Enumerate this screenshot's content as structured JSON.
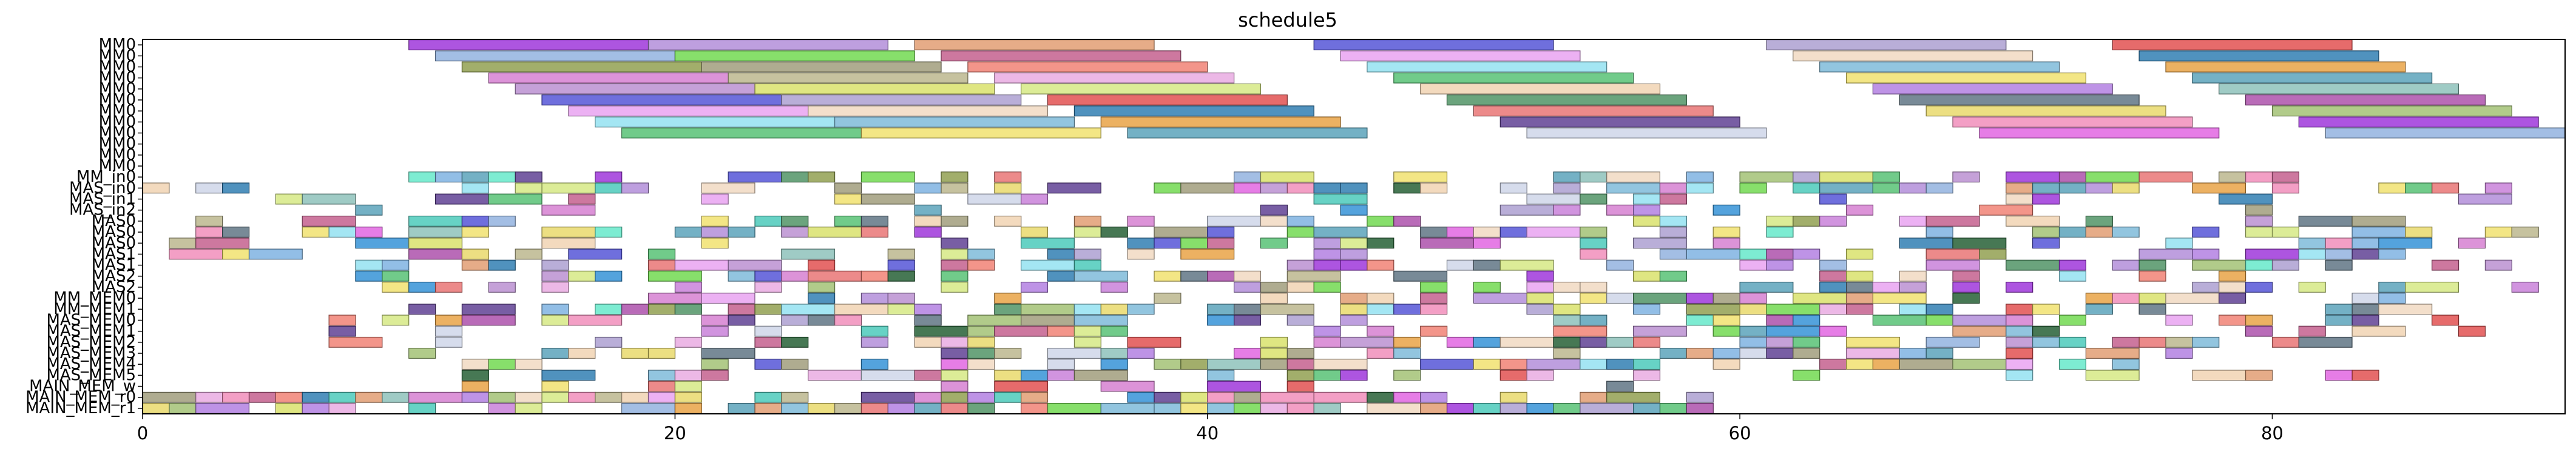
{
  "chart_data": {
    "type": "gantt",
    "title": "schedule5",
    "xlabel": "",
    "ylabel": "",
    "xlim": [
      0,
      91
    ],
    "xticks": [
      0,
      20,
      40,
      60,
      80
    ],
    "grid": false,
    "rows": [
      "MM0",
      "MM0",
      "MM0",
      "MM0",
      "MM0",
      "MM0",
      "MM0",
      "MM0",
      "MM0",
      "MM0",
      "MM0",
      "MM0",
      "MM_in0",
      "MAS_in0",
      "MAS_in1",
      "MAS_in2",
      "MAS0",
      "MAS0",
      "MAS0",
      "MAS1",
      "MAS1",
      "MAS2",
      "MAS2",
      "MM_MEM0",
      "MM_MEM1",
      "MAS_MEM0",
      "MAS_MEM1",
      "MAS_MEM2",
      "MAS_MEM3",
      "MAS_MEM4",
      "MAS_MEM5",
      "MAIN_MEM_w",
      "MAIN_MEM_r0",
      "MAIN_MEM_r1"
    ],
    "palette": [
      "#9b30d9",
      "#c77dd8",
      "#2e8fd6",
      "#8fb0de",
      "#1e5a2e",
      "#b08ad8",
      "#8e9c4a",
      "#7ab0e0",
      "#6dd84a",
      "#d47bd0",
      "#e09a6e",
      "#9d9a78",
      "#b88cd0",
      "#c25a8a",
      "#b9b48a",
      "#4f4fd6",
      "#f07e70",
      "#d8e066",
      "#e8a0f0",
      "#e8a8e0",
      "#aa9cd0",
      "#90e0f0",
      "#d4e880",
      "#f0d8c0",
      "#52c070",
      "#e04a4a",
      "#7ab8d8",
      "#f0d2b0",
      "#2a7ab0",
      "#f0e06a",
      "#4a9060",
      "#e8a040",
      "#b07be0",
      "#e87070",
      "#56a0b8",
      "#5a7080",
      "#5a3a90",
      "#8ac0b8",
      "#e8d866",
      "#cdd4e8",
      "#aa4aa8",
      "#f08ab8",
      "#46c8b8",
      "#a0c070",
      "#e060e0",
      "#60e8c8"
    ],
    "row_bars": [
      [
        [
          10,
          19
        ],
        [
          19,
          28
        ],
        [
          29,
          38
        ],
        [
          44,
          53
        ],
        [
          61,
          70
        ],
        [
          74,
          83
        ]
      ],
      [
        [
          11,
          20
        ],
        [
          20,
          29
        ],
        [
          30,
          39
        ],
        [
          45,
          54
        ],
        [
          62,
          71
        ],
        [
          75,
          84
        ]
      ],
      [
        [
          12,
          21
        ],
        [
          21,
          30
        ],
        [
          31,
          40
        ],
        [
          46,
          55
        ],
        [
          63,
          72
        ],
        [
          76,
          85
        ]
      ],
      [
        [
          13,
          22
        ],
        [
          22,
          31
        ],
        [
          32,
          41
        ],
        [
          47,
          56
        ],
        [
          64,
          73
        ],
        [
          77,
          86
        ]
      ],
      [
        [
          14,
          23
        ],
        [
          23,
          32
        ],
        [
          33,
          42
        ],
        [
          48,
          57
        ],
        [
          65,
          74
        ],
        [
          78,
          87
        ]
      ],
      [
        [
          15,
          24
        ],
        [
          24,
          33
        ],
        [
          34,
          43
        ],
        [
          49,
          58
        ],
        [
          66,
          75
        ],
        [
          79,
          88
        ]
      ],
      [
        [
          16,
          25
        ],
        [
          25,
          34
        ],
        [
          35,
          44
        ],
        [
          50,
          59
        ],
        [
          67,
          76
        ],
        [
          80,
          89
        ]
      ],
      [
        [
          17,
          26
        ],
        [
          26,
          35
        ],
        [
          36,
          45
        ],
        [
          51,
          60
        ],
        [
          68,
          77
        ],
        [
          81,
          90
        ]
      ],
      [
        [
          18,
          27
        ],
        [
          27,
          36
        ],
        [
          37,
          46
        ],
        [
          52,
          61
        ],
        [
          69,
          78
        ],
        [
          82,
          91
        ]
      ]
    ],
    "row_seeds": [
      1,
      2,
      3,
      4,
      5,
      6,
      7,
      8,
      9,
      10,
      11,
      12,
      13,
      14,
      15,
      16,
      17,
      18,
      19,
      20,
      21,
      22,
      23,
      24,
      25,
      26,
      27,
      28,
      29,
      30,
      31,
      32,
      33,
      34
    ],
    "row_density": [
      0,
      0,
      0,
      0,
      0,
      0,
      0,
      0,
      0,
      0,
      0,
      0,
      0.55,
      0.7,
      0.35,
      0.25,
      0.45,
      0.55,
      0.45,
      0.45,
      0.5,
      0.45,
      0.5,
      0.6,
      0.6,
      0.55,
      0.5,
      0.5,
      0.45,
      0.45,
      0.4,
      0.3,
      0.85,
      0.85
    ],
    "row_span": [
      [
        0,
        0
      ],
      [
        0,
        0
      ],
      [
        0,
        0
      ],
      [
        0,
        0
      ],
      [
        0,
        0
      ],
      [
        0,
        0
      ],
      [
        0,
        0
      ],
      [
        0,
        0
      ],
      [
        0,
        0
      ],
      [
        0,
        0
      ],
      [
        0,
        0
      ],
      [
        0,
        0
      ],
      [
        9,
        82
      ],
      [
        0,
        89
      ],
      [
        0,
        90
      ],
      [
        7,
        82
      ],
      [
        2,
        89
      ],
      [
        2,
        90
      ],
      [
        1,
        91
      ],
      [
        1,
        90
      ],
      [
        8,
        89
      ],
      [
        8,
        83
      ],
      [
        9,
        90
      ],
      [
        19,
        89
      ],
      [
        10,
        89
      ],
      [
        7,
        88
      ],
      [
        7,
        88
      ],
      [
        7,
        84
      ],
      [
        10,
        84
      ],
      [
        12,
        84
      ],
      [
        12,
        84
      ],
      [
        12,
        60
      ],
      [
        0,
        60
      ],
      [
        0,
        60
      ]
    ]
  }
}
